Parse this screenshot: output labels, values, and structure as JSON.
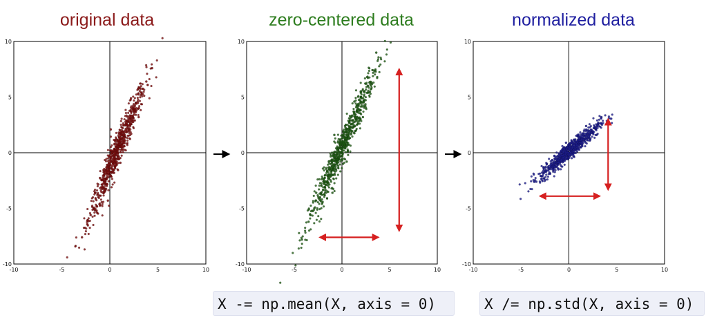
{
  "colors": {
    "original": "#7a0f0f",
    "zero_centered": "#1f5a14",
    "normalized": "#1d1d8c",
    "arrow": "#d62020",
    "title_original": "#8b1a1a",
    "title_zero_centered": "#2e7d1f",
    "title_normalized": "#1f1fa0"
  },
  "code": {
    "mean": "X -= np.mean(X, axis = 0)",
    "std": "X /= np.std(X, axis = 0)"
  },
  "chart_data": [
    {
      "type": "scatter",
      "title": "original data",
      "xlim": [
        -10,
        10
      ],
      "ylim": [
        -10,
        10
      ],
      "xticks": [
        "-10",
        "-5",
        "0",
        "5",
        "10"
      ],
      "yticks": [
        "10",
        "5",
        "0",
        "-5",
        "-10"
      ],
      "grid": false,
      "series": [
        {
          "points": [
            [
              -2.9,
              -7.6
            ],
            [
              -2.3,
              -6.1
            ],
            [
              -1.7,
              -5.0
            ],
            [
              -1.2,
              -4.0
            ],
            [
              -0.8,
              -3.1
            ],
            [
              -0.4,
              -2.4
            ],
            [
              0.0,
              -1.7
            ],
            [
              0.3,
              -0.9
            ],
            [
              0.6,
              -0.2
            ],
            [
              0.9,
              0.5
            ],
            [
              1.2,
              1.2
            ],
            [
              1.5,
              1.8
            ],
            [
              1.8,
              2.5
            ],
            [
              2.1,
              3.1
            ],
            [
              2.5,
              3.9
            ],
            [
              2.9,
              4.6
            ],
            [
              3.3,
              5.4
            ],
            [
              3.8,
              6.4
            ],
            [
              4.4,
              7.6
            ],
            [
              -1.5,
              -3.6
            ],
            [
              -0.6,
              -1.6
            ],
            [
              0.5,
              0.3
            ],
            [
              1.6,
              1.4
            ],
            [
              2.6,
              2.9
            ],
            [
              -0.2,
              -4.3
            ],
            [
              1.1,
              -0.9
            ],
            [
              0.1,
              2.1
            ],
            [
              2.2,
              4.9
            ],
            [
              -2.0,
              -5.6
            ],
            [
              3.0,
              3.2
            ]
          ]
        }
      ]
    },
    {
      "type": "scatter",
      "title": "zero-centered data",
      "xlim": [
        -10,
        10
      ],
      "ylim": [
        -10,
        10
      ],
      "xticks": [
        "-10",
        "-5",
        "0",
        "5",
        "10"
      ],
      "yticks": [
        "10",
        "5",
        "0",
        "-5",
        "-10"
      ],
      "grid": false,
      "series": [
        {
          "points": [
            [
              -4.2,
              -7.8
            ],
            [
              -3.5,
              -6.2
            ],
            [
              -2.9,
              -5.0
            ],
            [
              -2.3,
              -4.0
            ],
            [
              -1.8,
              -3.1
            ],
            [
              -1.3,
              -2.2
            ],
            [
              -0.9,
              -1.4
            ],
            [
              -0.5,
              -0.7
            ],
            [
              -0.1,
              0.0
            ],
            [
              0.3,
              0.8
            ],
            [
              0.7,
              1.5
            ],
            [
              1.1,
              2.3
            ],
            [
              1.5,
              3.0
            ],
            [
              1.9,
              3.8
            ],
            [
              2.3,
              4.6
            ],
            [
              2.7,
              5.4
            ],
            [
              3.1,
              6.3
            ],
            [
              3.5,
              7.4
            ],
            [
              3.6,
              9.0
            ],
            [
              -2.7,
              -3.6
            ],
            [
              -1.6,
              -1.8
            ],
            [
              -0.6,
              0.4
            ],
            [
              0.8,
              2.1
            ],
            [
              2.0,
              5.0
            ],
            [
              -1.0,
              -3.6
            ],
            [
              0.5,
              -0.8
            ],
            [
              -0.8,
              1.6
            ],
            [
              1.3,
              4.6
            ],
            [
              -3.3,
              -5.6
            ],
            [
              2.2,
              3.2
            ]
          ]
        }
      ],
      "annotations": {
        "vertical_arrow": [
          -7.0,
          7.5
        ],
        "horizontal_arrow": [
          -2.3,
          3.8
        ]
      }
    },
    {
      "type": "scatter",
      "title": "normalized data",
      "xlim": [
        -10,
        10
      ],
      "ylim": [
        -10,
        10
      ],
      "xticks": [
        "-10",
        "-5",
        "0",
        "5",
        "10"
      ],
      "yticks": [
        "10",
        "5",
        "0",
        "-5",
        "-10"
      ],
      "grid": false,
      "series": [
        {
          "points": [
            [
              -3.4,
              -2.6
            ],
            [
              -2.9,
              -2.1
            ],
            [
              -2.5,
              -1.7
            ],
            [
              -2.1,
              -1.4
            ],
            [
              -1.7,
              -1.1
            ],
            [
              -1.3,
              -0.8
            ],
            [
              -0.9,
              -0.5
            ],
            [
              -0.5,
              -0.2
            ],
            [
              -0.1,
              0.0
            ],
            [
              0.3,
              0.3
            ],
            [
              0.7,
              0.6
            ],
            [
              1.1,
              0.9
            ],
            [
              1.5,
              1.2
            ],
            [
              1.9,
              1.5
            ],
            [
              2.3,
              1.8
            ],
            [
              2.7,
              2.2
            ],
            [
              3.1,
              2.6
            ],
            [
              3.4,
              3.2
            ],
            [
              -2.3,
              -1.0
            ],
            [
              -1.5,
              -0.3
            ],
            [
              -0.5,
              0.5
            ],
            [
              0.5,
              -0.3
            ],
            [
              1.4,
              0.6
            ],
            [
              2.2,
              1.2
            ],
            [
              -1.1,
              -1.5
            ],
            [
              0.9,
              1.5
            ],
            [
              -0.3,
              0.9
            ],
            [
              1.8,
              2.4
            ],
            [
              -2.6,
              -2.3
            ],
            [
              2.9,
              1.6
            ]
          ]
        }
      ],
      "annotations": {
        "vertical_arrow": [
          -3.3,
          3.0
        ],
        "horizontal_arrow": [
          -3.0,
          3.2
        ]
      }
    }
  ]
}
